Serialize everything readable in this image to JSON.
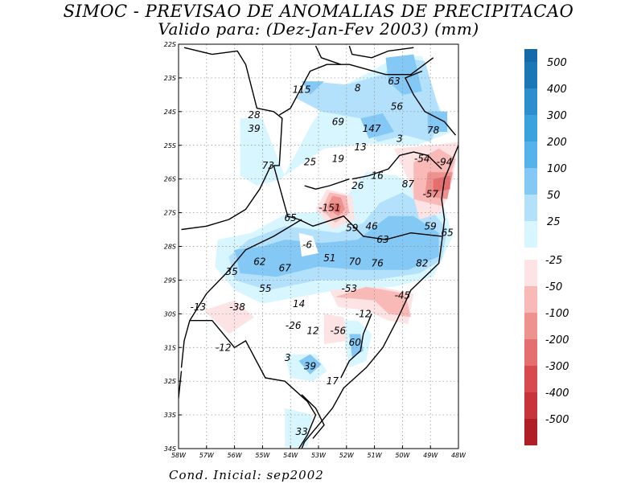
{
  "title": "SIMOC - PREVISAO DE ANOMALIAS DE PRECIPITACAO",
  "subtitle": "Valido para: (Dez-Jan-Fev 2003) (mm)",
  "footer": "Cond. Inicial: sep2002",
  "map": {
    "lat_labels": [
      "22S",
      "23S",
      "24S",
      "25S",
      "26S",
      "27S",
      "28S",
      "29S",
      "30S",
      "31S",
      "32S",
      "33S",
      "34S"
    ],
    "lon_labels": [
      "58W",
      "57W",
      "56W",
      "55W",
      "54W",
      "53W",
      "52W",
      "51W",
      "50W",
      "49W",
      "48W"
    ],
    "values": [
      {
        "text": "115",
        "lon": -53.6,
        "lat": -23.35
      },
      {
        "text": "8",
        "lon": -51.6,
        "lat": -23.3
      },
      {
        "text": "63",
        "lon": -50.3,
        "lat": -23.1
      },
      {
        "text": "56",
        "lon": -50.2,
        "lat": -23.85
      },
      {
        "text": "28",
        "lon": -55.3,
        "lat": -24.1
      },
      {
        "text": "39",
        "lon": -55.3,
        "lat": -24.5
      },
      {
        "text": "69",
        "lon": -52.3,
        "lat": -24.3
      },
      {
        "text": "147",
        "lon": -51.1,
        "lat": -24.5
      },
      {
        "text": "78",
        "lon": -48.9,
        "lat": -24.55
      },
      {
        "text": "3",
        "lon": -50.1,
        "lat": -24.8
      },
      {
        "text": "13",
        "lon": -51.5,
        "lat": -25.05
      },
      {
        "text": "19",
        "lon": -52.3,
        "lat": -25.4
      },
      {
        "text": "-54",
        "lon": -49.3,
        "lat": -25.4
      },
      {
        "text": "-94",
        "lon": -48.5,
        "lat": -25.5
      },
      {
        "text": "73",
        "lon": -54.8,
        "lat": -25.6
      },
      {
        "text": "25",
        "lon": -53.3,
        "lat": -25.5
      },
      {
        "text": "16",
        "lon": -50.9,
        "lat": -25.9
      },
      {
        "text": "87",
        "lon": -49.8,
        "lat": -26.15
      },
      {
        "text": "26",
        "lon": -51.6,
        "lat": -26.2
      },
      {
        "text": "-57",
        "lon": -49.0,
        "lat": -26.45
      },
      {
        "text": "-151",
        "lon": -52.6,
        "lat": -26.85
      },
      {
        "text": "65",
        "lon": -54.0,
        "lat": -27.15
      },
      {
        "text": "59",
        "lon": -51.8,
        "lat": -27.45
      },
      {
        "text": "46",
        "lon": -51.1,
        "lat": -27.4
      },
      {
        "text": "59",
        "lon": -49.0,
        "lat": -27.4
      },
      {
        "text": "65",
        "lon": -48.4,
        "lat": -27.6
      },
      {
        "text": "63",
        "lon": -50.7,
        "lat": -27.8
      },
      {
        "text": "-6",
        "lon": -53.4,
        "lat": -27.95
      },
      {
        "text": "62",
        "lon": -55.1,
        "lat": -28.45
      },
      {
        "text": "51",
        "lon": -52.6,
        "lat": -28.35
      },
      {
        "text": "70",
        "lon": -51.7,
        "lat": -28.45
      },
      {
        "text": "76",
        "lon": -50.9,
        "lat": -28.5
      },
      {
        "text": "82",
        "lon": -49.3,
        "lat": -28.5
      },
      {
        "text": "35",
        "lon": -56.1,
        "lat": -28.75
      },
      {
        "text": "67",
        "lon": -54.2,
        "lat": -28.65
      },
      {
        "text": "55",
        "lon": -54.9,
        "lat": -29.25
      },
      {
        "text": "-53",
        "lon": -51.9,
        "lat": -29.25
      },
      {
        "text": "-45",
        "lon": -50.0,
        "lat": -29.45
      },
      {
        "text": "14",
        "lon": -53.7,
        "lat": -29.7
      },
      {
        "text": "-13",
        "lon": -57.3,
        "lat": -29.8
      },
      {
        "text": "-38",
        "lon": -55.9,
        "lat": -29.8
      },
      {
        "text": "-12",
        "lon": -51.4,
        "lat": -30.0
      },
      {
        "text": "-26",
        "lon": -53.9,
        "lat": -30.35
      },
      {
        "text": "12",
        "lon": -53.2,
        "lat": -30.5
      },
      {
        "text": "-56",
        "lon": -52.3,
        "lat": -30.5
      },
      {
        "text": "60",
        "lon": -51.7,
        "lat": -30.85
      },
      {
        "text": "-12",
        "lon": -56.4,
        "lat": -31.0
      },
      {
        "text": "3",
        "lon": -54.1,
        "lat": -31.3
      },
      {
        "text": "39",
        "lon": -53.3,
        "lat": -31.55
      },
      {
        "text": "17",
        "lon": -52.5,
        "lat": -32.0
      },
      {
        "text": "33",
        "lon": -53.6,
        "lat": -33.5
      }
    ]
  },
  "legend": {
    "positive": [
      {
        "label": "500",
        "color": "#1a77b5"
      },
      {
        "label": "400",
        "color": "#2b8fcf"
      },
      {
        "label": "300",
        "color": "#3aa2de"
      },
      {
        "label": "200",
        "color": "#56b2ea"
      },
      {
        "label": "100",
        "color": "#84c9f5"
      },
      {
        "label": "50",
        "color": "#b3e1fb"
      },
      {
        "label": "25",
        "color": "#d8f6ff"
      }
    ],
    "negative": [
      {
        "label": "-25",
        "color": "#fde3e3"
      },
      {
        "label": "-50",
        "color": "#f8b9b7"
      },
      {
        "label": "-100",
        "color": "#ee9290"
      },
      {
        "label": "-200",
        "color": "#e56e6e"
      },
      {
        "label": "-300",
        "color": "#d94a4e"
      },
      {
        "label": "-400",
        "color": "#c8343b"
      },
      {
        "label": "-500",
        "color": "#b01f28"
      }
    ],
    "top_color": "#1569a8",
    "bottom_color": "#a8141e"
  }
}
